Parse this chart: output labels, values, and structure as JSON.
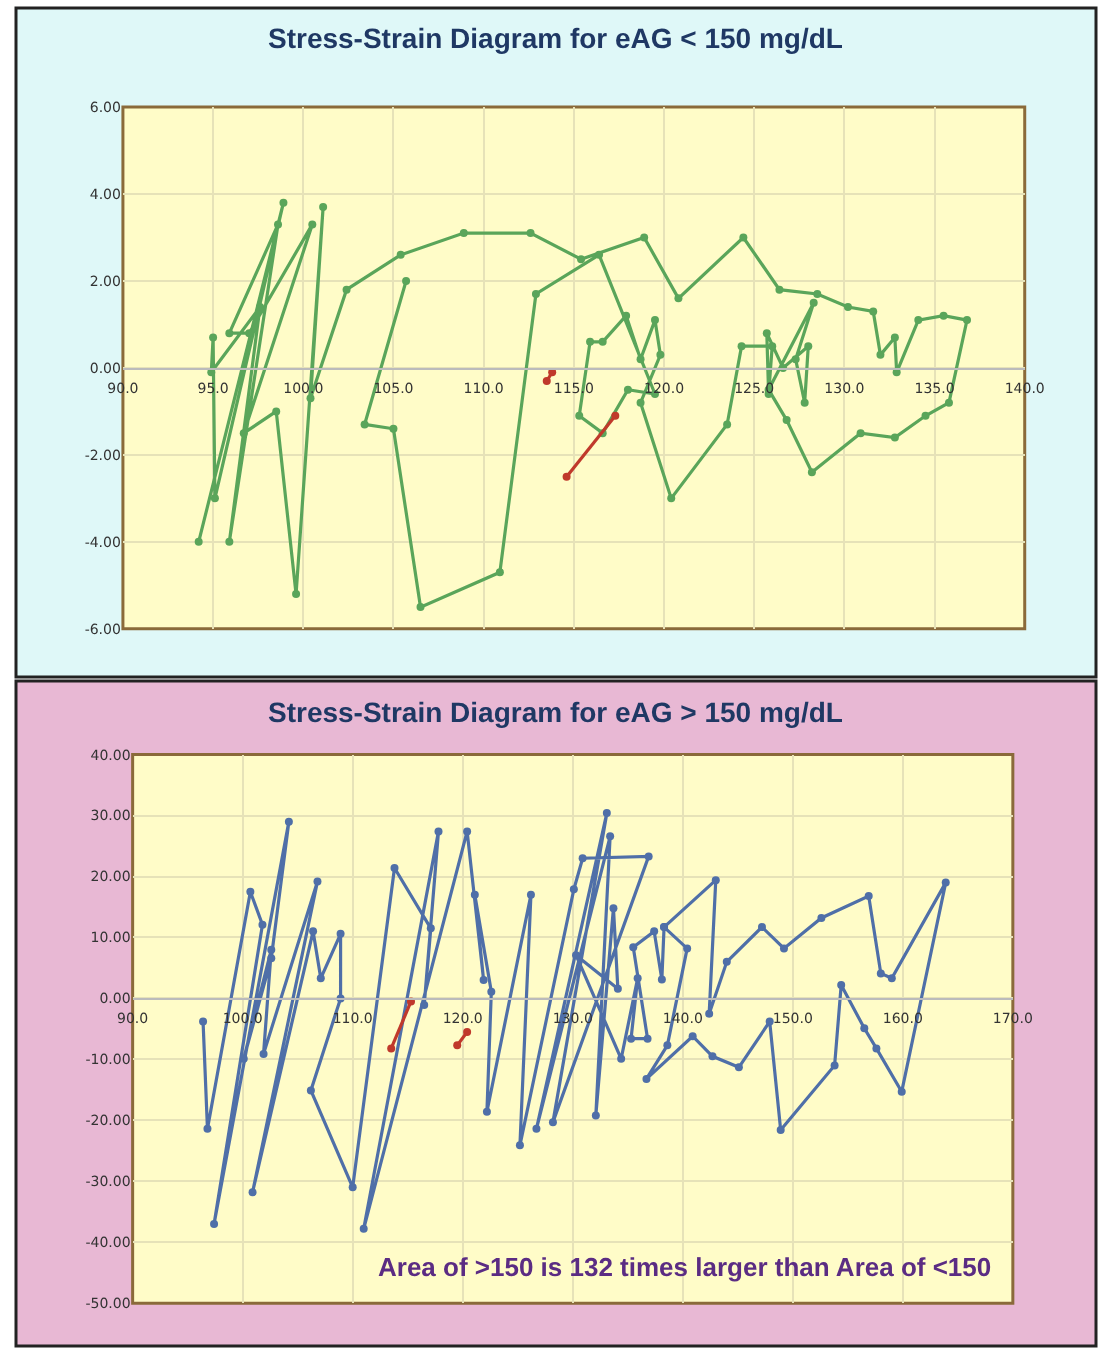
{
  "chart_data": [
    {
      "type": "line",
      "title": "Stress-Strain Diagram for eAG < 150 mg/dL",
      "marker": "circle",
      "line_style": "solid",
      "grid": true,
      "xlim": [
        90,
        140
      ],
      "ylim": [
        -6,
        6
      ],
      "xticks": [
        {
          "value": 90,
          "label": "90.0"
        },
        {
          "value": 95,
          "label": "95.0"
        },
        {
          "value": 100,
          "label": "100.0"
        },
        {
          "value": 105,
          "label": "105.0"
        },
        {
          "value": 110,
          "label": "110.0"
        },
        {
          "value": 115,
          "label": "115.0"
        },
        {
          "value": 120,
          "label": "120.0"
        },
        {
          "value": 125,
          "label": "125.0"
        },
        {
          "value": 130,
          "label": "130.0"
        },
        {
          "value": 135,
          "label": "135.0"
        },
        {
          "value": 140,
          "label": "140.0"
        }
      ],
      "yticks": [
        {
          "value": -6,
          "label": "-6.00"
        },
        {
          "value": -4,
          "label": "-4.00"
        },
        {
          "value": -2,
          "label": "-2.00"
        },
        {
          "value": 0,
          "label": "0.00"
        },
        {
          "value": 2,
          "label": "2.00"
        },
        {
          "value": 4,
          "label": "4.00"
        },
        {
          "value": 6,
          "label": "6.00"
        }
      ],
      "series": [
        {
          "color": "#5aa55a",
          "x": [
            94.2,
            98.9,
            95.1,
            95.0,
            94.9,
            97.6,
            95.9,
            98.6,
            95.9,
            97.0,
            100.5,
            96.7,
            98.5,
            99.6,
            101.1,
            100.4,
            102.4,
            105.4,
            108.9,
            112.6,
            115.4,
            118.9,
            120.8,
            124.4,
            126.4,
            128.5,
            130.2,
            131.6,
            132.0,
            132.8,
            132.9,
            134.1,
            135.5,
            136.8,
            135.8,
            134.5,
            132.8,
            130.9,
            128.2,
            126.8,
            125.8,
            128.3,
            127.3,
            127.8,
            128.0,
            126.6,
            125.7,
            125.8,
            126.0,
            124.3,
            123.5,
            120.4,
            118.7,
            119.8,
            119.5,
            118.7,
            117.9,
            116.6,
            115.9,
            115.3,
            116.6,
            118.0,
            119.5,
            116.4,
            112.9,
            110.9,
            106.5,
            105.0,
            103.4,
            105.7
          ],
          "values": [
            -4.0,
            3.8,
            -3.0,
            0.7,
            -0.1,
            1.4,
            -4.0,
            3.3,
            0.8,
            0.8,
            3.3,
            -1.5,
            -1.0,
            -5.2,
            3.7,
            -0.7,
            1.8,
            2.6,
            3.1,
            3.1,
            2.5,
            3.0,
            1.6,
            3.0,
            1.8,
            1.7,
            1.4,
            1.3,
            0.3,
            0.7,
            -0.1,
            1.1,
            1.2,
            1.1,
            -0.8,
            -1.1,
            -1.6,
            -1.5,
            -2.4,
            -1.2,
            -0.5,
            1.5,
            0.2,
            -0.8,
            0.5,
            0.0,
            0.8,
            -0.6,
            0.5,
            0.5,
            -1.3,
            -3.0,
            -0.8,
            0.3,
            1.1,
            0.2,
            1.2,
            0.6,
            0.6,
            -1.1,
            -1.5,
            -0.5,
            -0.6,
            2.6,
            1.7,
            -4.7,
            -5.5,
            -1.4,
            -1.3,
            2.0
          ]
        },
        {
          "color": "#c0392b",
          "x": [
            113.5,
            113.8,
            114.2,
            117.3,
            114.6
          ],
          "values": [
            -0.3,
            -0.1,
            null,
            -1.1,
            -2.5
          ]
        }
      ]
    },
    {
      "type": "line",
      "title": "Stress-Strain Diagram for eAG > 150 mg/dL",
      "marker": "circle",
      "line_style": "solid",
      "grid": true,
      "annotations": [
        "Area of >150 is 132 times larger than Area of <150"
      ],
      "xlim": [
        90,
        170
      ],
      "ylim": [
        -50,
        40
      ],
      "xticks": [
        {
          "value": 90,
          "label": "90.0"
        },
        {
          "value": 100,
          "label": "100.0"
        },
        {
          "value": 110,
          "label": "110.0"
        },
        {
          "value": 120,
          "label": "120.0"
        },
        {
          "value": 130,
          "label": "130.0"
        },
        {
          "value": 140,
          "label": "140.0"
        },
        {
          "value": 150,
          "label": "150.0"
        },
        {
          "value": 160,
          "label": "160.0"
        },
        {
          "value": 170,
          "label": "170.0"
        }
      ],
      "yticks": [
        {
          "value": -50,
          "label": "-50.00"
        },
        {
          "value": -40,
          "label": "-40.00"
        },
        {
          "value": -30,
          "label": "-30.00"
        },
        {
          "value": -20,
          "label": "-20.00"
        },
        {
          "value": -10,
          "label": "-10.00"
        },
        {
          "value": 0,
          "label": "0.00"
        },
        {
          "value": 10,
          "label": "10.00"
        },
        {
          "value": 20,
          "label": "20.00"
        },
        {
          "value": 30,
          "label": "30.00"
        },
        {
          "value": 40,
          "label": "40.00"
        }
      ],
      "series": [
        {
          "color": "#4f6fa8",
          "x": [
            96.4,
            96.8,
            100.7,
            101.8,
            97.4,
            104.2,
            102.6,
            100.1,
            102.6,
            101.9,
            106.8,
            100.9,
            106.4,
            107.1,
            108.9,
            108.9,
            106.2,
            110.0,
            113.8,
            117.1,
            116.5,
            117.8,
            111.0,
            120.4,
            121.9,
            121.1,
            122.6,
            122.2,
            126.2,
            125.2,
            130.1,
            130.9,
            136.9,
            128.2,
            133.1,
            126.7,
            133.4,
            132.1,
            133.7,
            134.1,
            130.3,
            134.4,
            135.9,
            135.3,
            136.8,
            135.5,
            137.4,
            138.1,
            138.3,
            140.4,
            138.6,
            136.7,
            140.9,
            142.7,
            145.1,
            147.9,
            148.9,
            153.8,
            154.4,
            156.5,
            157.6,
            159.9,
            163.9,
            159.0,
            158.0,
            156.9,
            152.6,
            149.2,
            147.2,
            144.0,
            142.4,
            143.0,
            138.3
          ],
          "values": [
            -3.8,
            -21.4,
            17.5,
            12.1,
            -37.0,
            29.0,
            6.6,
            -9.9,
            8.0,
            -9.1,
            19.2,
            -31.8,
            11.0,
            3.3,
            10.6,
            0.0,
            -15.1,
            -31.0,
            21.4,
            11.5,
            -1.1,
            27.4,
            -37.8,
            27.4,
            3.0,
            17.0,
            1.1,
            -18.6,
            17.0,
            -24.1,
            17.9,
            23.0,
            23.3,
            -20.3,
            30.4,
            -21.4,
            26.6,
            -19.2,
            14.8,
            1.6,
            7.1,
            -9.9,
            3.3,
            -6.6,
            -6.6,
            8.4,
            11.0,
            3.1,
            11.7,
            8.2,
            -7.7,
            -13.2,
            -6.2,
            -9.5,
            -11.3,
            -3.8,
            -21.6,
            -11.0,
            2.2,
            -4.9,
            -8.2,
            -15.3,
            19.0,
            3.3,
            4.1,
            16.8,
            13.2,
            8.2,
            11.7,
            6.0,
            -2.5,
            19.4,
            11.7
          ]
        },
        {
          "color": "#c0392b",
          "x": [
            113.5,
            115.3,
            117.0,
            119.5,
            120.4
          ],
          "values": [
            -8.2,
            -0.5,
            null,
            -7.7,
            -5.5
          ]
        }
      ]
    }
  ]
}
